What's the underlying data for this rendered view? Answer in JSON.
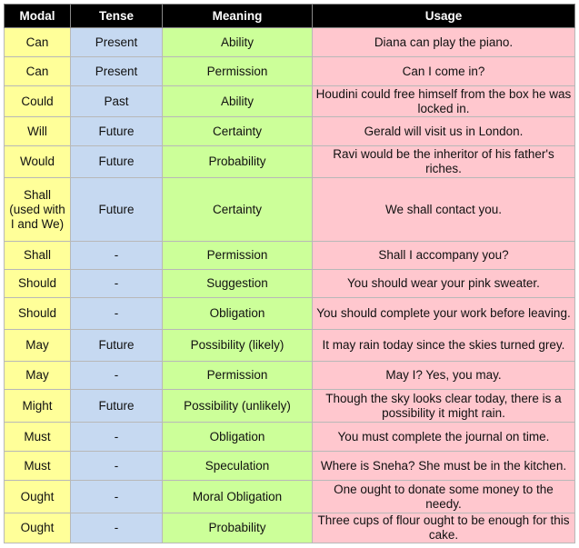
{
  "table": {
    "header": [
      "Modal",
      "Tense",
      "Meaning",
      "Usage"
    ],
    "rows": [
      [
        "Can",
        "Present",
        "Ability",
        "Diana can play the piano."
      ],
      [
        "Can",
        "Present",
        "Permission",
        "Can I come in?"
      ],
      [
        "Could",
        "Past",
        "Ability",
        "Houdini could free himself from the box he was locked in."
      ],
      [
        "Will",
        "Future",
        "Certainty",
        "Gerald will visit us in London."
      ],
      [
        "Would",
        "Future",
        "Probability",
        "Ravi would be the inheritor of his father's riches."
      ],
      [
        "Shall (used with I and We)",
        "Future",
        "Certainty",
        "We shall contact you."
      ],
      [
        "Shall",
        "-",
        "Permission",
        "Shall I accompany you?"
      ],
      [
        "Should",
        "-",
        "Suggestion",
        "You should wear your pink sweater."
      ],
      [
        "Should",
        "-",
        "Obligation",
        "You should complete your work before leaving."
      ],
      [
        "May",
        "Future",
        "Possibility (likely)",
        "It may rain today since the skies turned grey."
      ],
      [
        "May",
        "-",
        "Permission",
        "May I? Yes, you may."
      ],
      [
        "Might",
        "Future",
        "Possibility (unlikely)",
        "Though the sky looks clear today, there is a possibility it might rain."
      ],
      [
        "Must",
        "-",
        "Obligation",
        "You must complete the journal on time."
      ],
      [
        "Must",
        "-",
        "Speculation",
        "Where is Sneha? She must be in the kitchen."
      ],
      [
        "Ought",
        "-",
        "Moral Obligation",
        "One ought to donate some money to the needy."
      ],
      [
        "Ought",
        "-",
        "Probability",
        "Three cups of flour ought to be enough for this cake."
      ]
    ]
  }
}
